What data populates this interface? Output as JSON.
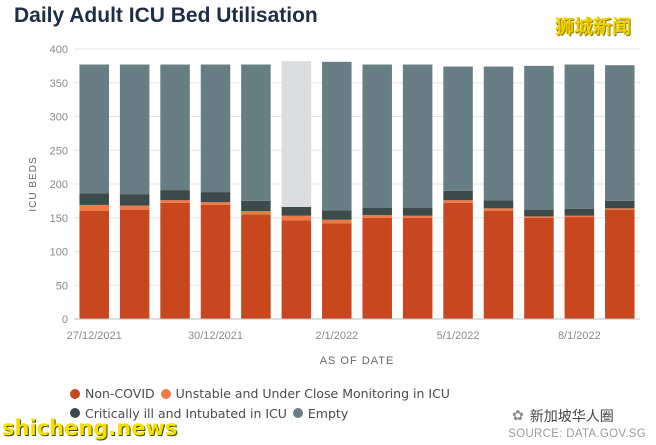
{
  "title": "Daily Adult ICU Bed Utilisation",
  "watermark_cn": "狮城新闻",
  "watermark_en": "shicheng.news",
  "watermark_cn2": "新加坡华人圈",
  "source": "SOURCE: DATA.GOV.SG",
  "colors": {
    "non_covid": "#c9471f",
    "unstable": "#ee7a48",
    "critical": "#3d4a4c",
    "empty": "#677e85",
    "highlight": "#dcdde0",
    "grid": "#e6e6e6",
    "axis_text": "#8a8a8a"
  },
  "chart_data": {
    "type": "bar",
    "stacked": true,
    "xlabel": "AS OF DATE",
    "ylabel": "ICU BEDS",
    "ylim": [
      0,
      400
    ],
    "yticks": [
      0,
      50,
      100,
      150,
      200,
      250,
      300,
      350,
      400
    ],
    "grid": true,
    "legend_position": "bottom",
    "categories": [
      "27/12/2021",
      "28/12/2021",
      "29/12/2021",
      "30/12/2021",
      "31/12/2021",
      "1/1/2022",
      "2/1/2022",
      "3/1/2022",
      "4/1/2022",
      "5/1/2022",
      "6/1/2022",
      "7/1/2022",
      "8/1/2022",
      "9/1/2022"
    ],
    "x_tick_labels": [
      "27/12/2021",
      "",
      "",
      "30/12/2021",
      "",
      "",
      "2/1/2022",
      "",
      "",
      "5/1/2022",
      "",
      "",
      "8/1/2022",
      ""
    ],
    "highlighted_index": 5,
    "series": [
      {
        "name": "Non-COVID",
        "color_key": "non_covid",
        "values": [
          160,
          162,
          172,
          169,
          155,
          146,
          142,
          150,
          150,
          172,
          160,
          150,
          151,
          162
        ]
      },
      {
        "name": "Unstable and Under Close Monitoring in ICU",
        "color_key": "unstable",
        "values": [
          9,
          6,
          4,
          4,
          5,
          7,
          5,
          4,
          3,
          4,
          4,
          2,
          2,
          2
        ]
      },
      {
        "name": "Critically ill and Intubated in ICU",
        "color_key": "critical",
        "values": [
          17,
          17,
          15,
          15,
          15,
          13,
          14,
          11,
          12,
          14,
          12,
          10,
          10,
          11
        ]
      },
      {
        "name": "Empty",
        "color_key": "empty",
        "values": [
          191,
          192,
          186,
          189,
          202,
          216,
          220,
          212,
          212,
          184,
          198,
          213,
          214,
          201
        ]
      }
    ]
  }
}
